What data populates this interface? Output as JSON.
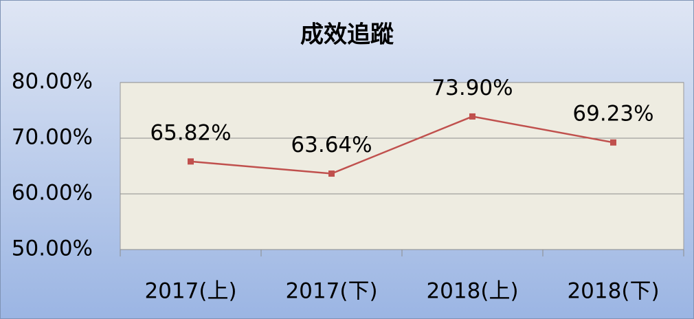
{
  "chart_data": {
    "type": "line",
    "title": "成效追蹤",
    "categories": [
      "2017(上)",
      "2017(下)",
      "2018(上)",
      "2018(下)"
    ],
    "values": [
      65.82,
      63.64,
      73.9,
      69.23
    ],
    "value_labels": [
      "65.82%",
      "63.64%",
      "73.90%",
      "69.23%"
    ],
    "color": "#c0504d",
    "ylim": [
      50,
      80
    ],
    "yticks": [
      {
        "value": 50,
        "label": "50.00%"
      },
      {
        "value": 60,
        "label": "60.00%"
      },
      {
        "value": 70,
        "label": "70.00%"
      },
      {
        "value": 80,
        "label": "80.00%"
      }
    ],
    "grid": true
  }
}
